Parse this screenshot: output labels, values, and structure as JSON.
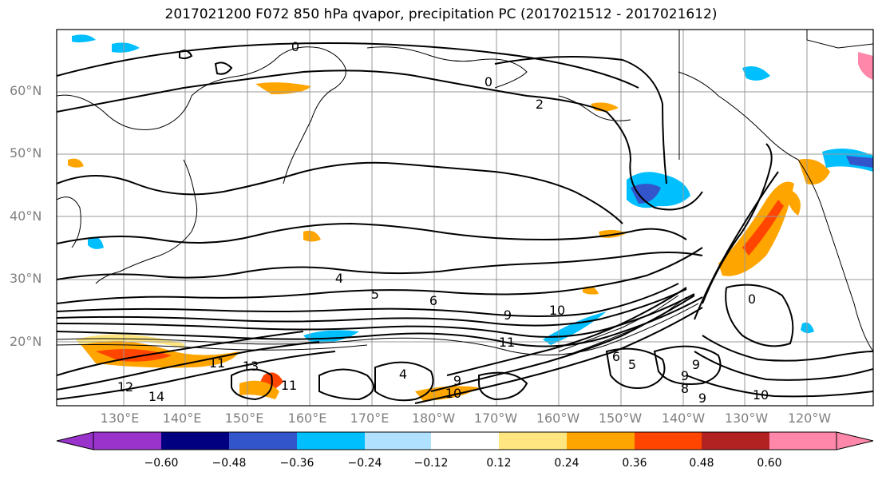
{
  "title": "2017021200 F072 850 hPa qvapor, precipitation PC (2017021512 - 2017021612)",
  "lat_labels": [
    "60°N",
    "50°N",
    "40°N",
    "30°N",
    "20°N"
  ],
  "lon_labels": [
    "130°E",
    "140°E",
    "150°E",
    "160°E",
    "170°E",
    "180°W",
    "170°W",
    "160°W",
    "150°W",
    "140°W",
    "130°W",
    "120°W"
  ],
  "contour_labels": [
    "0",
    "0",
    "2",
    "4",
    "5",
    "6",
    "9",
    "10",
    "11",
    "11",
    "12",
    "13",
    "14",
    "11",
    "9",
    "9",
    "8",
    "10",
    "6",
    "5",
    "4",
    "9",
    "9",
    "10",
    "0"
  ],
  "colorbar": {
    "ticks": [
      "−0.60",
      "−0.48",
      "−0.36",
      "−0.24",
      "−0.12",
      "0.12",
      "0.24",
      "0.36",
      "0.48",
      "0.60"
    ],
    "colors": [
      "#9933cc",
      "#000080",
      "#3355cc",
      "#00bfff",
      "#b0e2ff",
      "#ffffff",
      "#ffe680",
      "#ffa500",
      "#ff4500",
      "#b22222",
      "#ff88aa"
    ]
  }
}
